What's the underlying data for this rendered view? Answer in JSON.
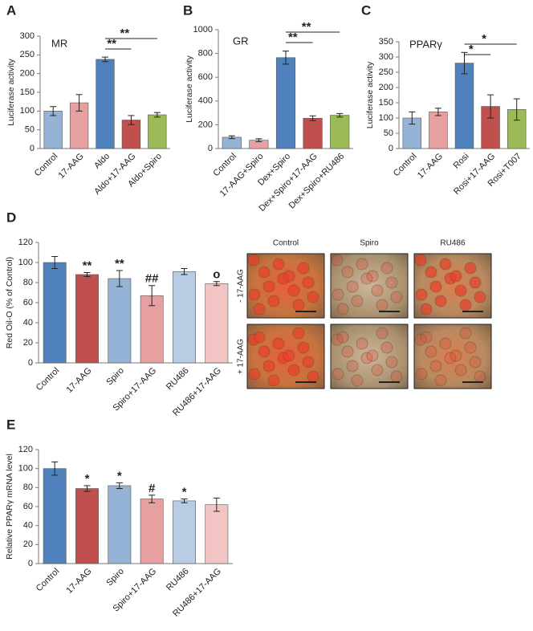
{
  "chart_data": [
    {
      "type": "bar",
      "panel": "A",
      "label": "MR",
      "y_label": "Luciferase activity",
      "categories": [
        "Control",
        "17-AAG",
        "Aldo",
        "Aldo+17-AAG",
        "Aldo+Spiro"
      ],
      "values": [
        100,
        122,
        238,
        76,
        90
      ],
      "errors": [
        12,
        22,
        6,
        12,
        6
      ],
      "colors": [
        "#95b3d7",
        "#e6a0a0",
        "#4f81bd",
        "#c0504d",
        "#9bbb59"
      ],
      "ylim": [
        0,
        300
      ],
      "yticks": [
        0,
        50,
        100,
        150,
        200,
        250,
        300
      ],
      "brackets": [
        {
          "from": "Aldo",
          "to": "Aldo+17-AAG",
          "label": "**"
        },
        {
          "from": "Aldo",
          "to": "Aldo+Spiro",
          "label": "**"
        }
      ]
    },
    {
      "type": "bar",
      "panel": "B",
      "label": "GR",
      "y_label": "Luciferase activity",
      "categories": [
        "Control",
        "17-AAG+Spiro",
        "Dex+Spiro",
        "Dex+Spiro+17-AAG",
        "Dex+Spiro+RU486"
      ],
      "values": [
        95,
        70,
        765,
        255,
        280
      ],
      "errors": [
        12,
        12,
        55,
        20,
        15
      ],
      "colors": [
        "#95b3d7",
        "#e6a0a0",
        "#4f81bd",
        "#c0504d",
        "#9bbb59"
      ],
      "ylim": [
        0,
        1000
      ],
      "yticks": [
        0,
        200,
        400,
        600,
        800,
        1000
      ],
      "brackets": [
        {
          "from": "Dex+Spiro",
          "to": "Dex+Spiro+17-AAG",
          "label": "**"
        },
        {
          "from": "Dex+Spiro",
          "to": "Dex+Spiro+RU486",
          "label": "**"
        }
      ]
    },
    {
      "type": "bar",
      "panel": "C",
      "label": "PPARγ",
      "y_label": "Luciferase activity",
      "categories": [
        "Control",
        "17-AAG",
        "Rosi",
        "Rosi+17-AAG",
        "Rosi+T007"
      ],
      "values": [
        100,
        120,
        280,
        138,
        128
      ],
      "errors": [
        20,
        12,
        35,
        38,
        35
      ],
      "colors": [
        "#95b3d7",
        "#e6a0a0",
        "#4f81bd",
        "#c0504d",
        "#9bbb59"
      ],
      "ylim": [
        0,
        350
      ],
      "yticks": [
        0,
        50,
        100,
        150,
        200,
        250,
        300,
        350
      ],
      "brackets": [
        {
          "from": "Rosi",
          "to": "Rosi+17-AAG",
          "label": "*"
        },
        {
          "from": "Rosi",
          "to": "Rosi+T007",
          "label": "*"
        }
      ]
    },
    {
      "type": "bar",
      "panel": "D",
      "y_label": "Red Oil-O (% of Control)",
      "categories": [
        "Control",
        "17-AAG",
        "Spiro",
        "Spiro+17-AAG",
        "RU486",
        "RU486+17-AAG"
      ],
      "values": [
        100,
        88,
        84,
        67,
        91,
        79
      ],
      "errors": [
        6,
        2,
        8,
        10,
        3,
        2
      ],
      "annotations": [
        null,
        "**",
        "**",
        "##",
        null,
        "o"
      ],
      "colors": [
        "#4f81bd",
        "#c0504d",
        "#95b3d7",
        "#e6a0a0",
        "#b8cce4",
        "#f2c4c4"
      ],
      "ylim": [
        0,
        120
      ],
      "yticks": [
        0,
        20,
        40,
        60,
        80,
        100,
        120
      ]
    },
    {
      "type": "bar",
      "panel": "E",
      "y_label": "Relative PPARγ mRNA level",
      "categories": [
        "Control",
        "17-AAG",
        "Spiro",
        "Spiro+17-AAG",
        "RU486",
        "RU486+17-AAG"
      ],
      "values": [
        100,
        79,
        82,
        68,
        66,
        62
      ],
      "errors": [
        7,
        3,
        3,
        4,
        2,
        7
      ],
      "annotations": [
        null,
        "*",
        "*",
        "#",
        "*",
        null
      ],
      "colors": [
        "#4f81bd",
        "#c0504d",
        "#95b3d7",
        "#e6a0a0",
        "#b8cce4",
        "#f2c4c4"
      ],
      "ylim": [
        0,
        120
      ],
      "yticks": [
        0,
        20,
        40,
        60,
        80,
        100,
        120
      ]
    }
  ],
  "micrographs": {
    "columns": [
      "Control",
      "Spiro",
      "RU486"
    ],
    "rows": [
      "- 17-AAG",
      "+ 17-AAG"
    ]
  }
}
